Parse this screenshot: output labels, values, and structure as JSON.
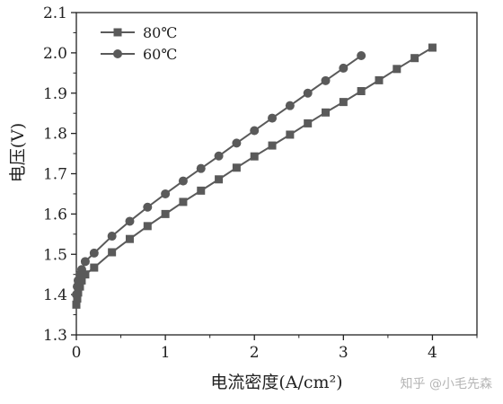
{
  "watermark": "知乎 @小毛先森",
  "colors": {
    "series": "#5a5a5a",
    "axis": "#222222",
    "watermark": "#b5b5b5"
  },
  "chart_data": {
    "type": "line",
    "xlabel": "电流密度(A/cm²)",
    "ylabel": "电压(V)",
    "xlim": [
      0,
      4.5
    ],
    "ylim": [
      1.3,
      2.1
    ],
    "x_ticks": [
      0,
      1,
      2,
      3,
      4
    ],
    "y_ticks": [
      1.3,
      1.4,
      1.5,
      1.6,
      1.7,
      1.8,
      1.9,
      2.0,
      2.1
    ],
    "grid": false,
    "legend_position": "top-left",
    "series": [
      {
        "name": "80℃",
        "marker": "square",
        "x": [
          0,
          0.01,
          0.02,
          0.04,
          0.06,
          0.1,
          0.2,
          0.4,
          0.6,
          0.8,
          1.0,
          1.2,
          1.4,
          1.6,
          1.8,
          2.0,
          2.2,
          2.4,
          2.6,
          2.8,
          3.0,
          3.2,
          3.4,
          3.6,
          3.8,
          4.0
        ],
        "y": [
          1.375,
          1.39,
          1.405,
          1.42,
          1.435,
          1.45,
          1.467,
          1.505,
          1.538,
          1.57,
          1.6,
          1.63,
          1.658,
          1.686,
          1.715,
          1.743,
          1.77,
          1.797,
          1.825,
          1.852,
          1.878,
          1.905,
          1.932,
          1.96,
          1.987,
          2.013
        ]
      },
      {
        "name": "60℃",
        "marker": "circle",
        "x": [
          0,
          0.01,
          0.02,
          0.04,
          0.06,
          0.1,
          0.2,
          0.4,
          0.6,
          0.8,
          1.0,
          1.2,
          1.4,
          1.6,
          1.8,
          2.0,
          2.2,
          2.4,
          2.6,
          2.8,
          3.0,
          3.2
        ],
        "y": [
          1.4,
          1.42,
          1.435,
          1.45,
          1.462,
          1.482,
          1.503,
          1.545,
          1.582,
          1.617,
          1.65,
          1.682,
          1.713,
          1.744,
          1.776,
          1.807,
          1.838,
          1.869,
          1.9,
          1.931,
          1.962,
          1.993
        ]
      }
    ]
  }
}
